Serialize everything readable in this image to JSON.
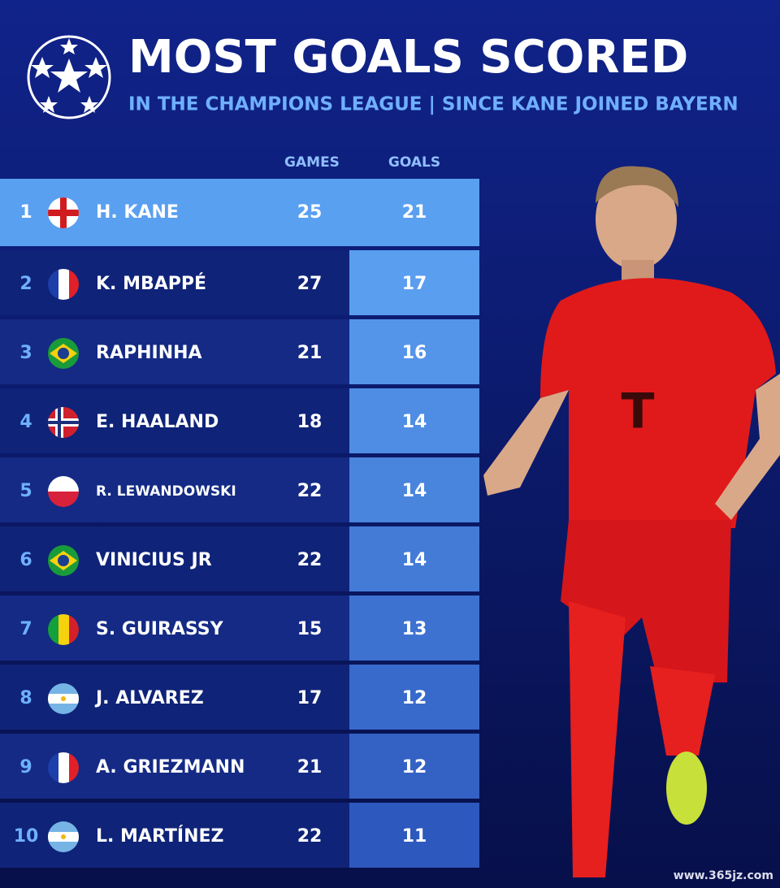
{
  "header": {
    "title": "MOST GOALS SCORED",
    "subtitle": "IN THE CHAMPIONS LEAGUE | SINCE KANE JOINED BAYERN"
  },
  "table": {
    "columns": [
      "GAMES",
      "GOALS"
    ],
    "rows": [
      [
        1,
        "H. KANE",
        25,
        21
      ],
      [
        2,
        "K. MBAPPÉ",
        27,
        17
      ],
      [
        3,
        "RAPHINHA",
        21,
        16
      ],
      [
        4,
        "E. HAALAND",
        18,
        14
      ],
      [
        5,
        "R. LEWANDOWSKI",
        22,
        14
      ],
      [
        6,
        "VINICIUS JR",
        22,
        14
      ],
      [
        7,
        "S. GUIRASSY",
        15,
        13
      ],
      [
        8,
        "J. ALVAREZ",
        17,
        12
      ],
      [
        9,
        "A. GRIEZMANN",
        21,
        12
      ],
      [
        10,
        "L. MARTÍNEZ",
        22,
        11
      ]
    ]
  },
  "watermark": "www.365jz.com"
}
